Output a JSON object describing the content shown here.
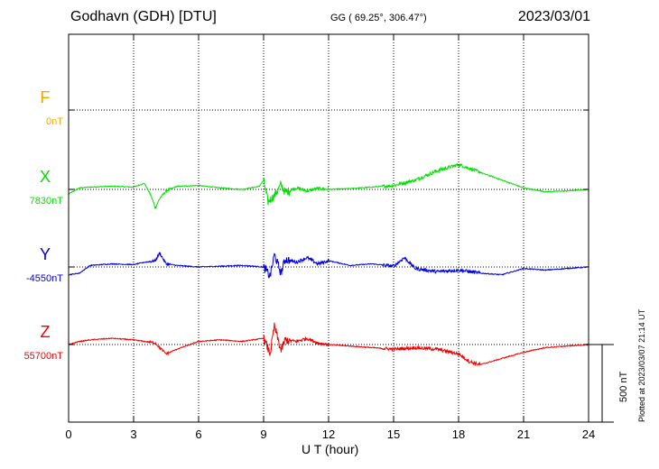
{
  "header": {
    "station": "Godhavn (GDH)  [DTU]",
    "coords": "GG ( 69.25°, 306.47°)",
    "date": "2023/03/01"
  },
  "footer": {
    "plotted": "Plotted at 2023/03/07 21:14 UT"
  },
  "chart_data": {
    "type": "line",
    "title": "",
    "xlabel": "U T (hour)",
    "ylabel": "",
    "xlim": [
      0,
      24
    ],
    "x_ticks": [
      "0",
      "3",
      "6",
      "9",
      "12",
      "15",
      "18",
      "21",
      "24"
    ],
    "scale_bar": "500 nT",
    "grid": "dotted vertical every 3 h, dotted baseline per component",
    "series": [
      {
        "name": "F",
        "baseline": "0nT",
        "color": "#f0a800",
        "x": [],
        "y": []
      },
      {
        "name": "X",
        "baseline": "7830nT",
        "color": "#00e000",
        "x": [
          0,
          0.5,
          1,
          2,
          3,
          3.5,
          3.8,
          4.0,
          4.2,
          4.5,
          5,
          6,
          7,
          8,
          8.8,
          9.0,
          9.2,
          9.5,
          9.8,
          10,
          10.5,
          11,
          11.5,
          12,
          13,
          14,
          15,
          16,
          17,
          18,
          19,
          20,
          21,
          22,
          23,
          24
        ],
        "y": [
          -30,
          10,
          15,
          20,
          15,
          40,
          -40,
          -120,
          -60,
          -10,
          20,
          25,
          10,
          0,
          20,
          60,
          -80,
          -40,
          30,
          -20,
          10,
          -10,
          5,
          0,
          5,
          15,
          25,
          60,
          120,
          160,
          110,
          60,
          10,
          -15,
          -10,
          0
        ]
      },
      {
        "name": "Y",
        "baseline": "-4550nT",
        "color": "#0000dd",
        "x": [
          0,
          0.5,
          1,
          2,
          3,
          3.5,
          4,
          4.2,
          4.5,
          5,
          6,
          7,
          8,
          9.0,
          9.3,
          9.5,
          9.8,
          10,
          10.5,
          11,
          11.5,
          12,
          13,
          14,
          15,
          15.5,
          16,
          17,
          18,
          19,
          20,
          21,
          22,
          23,
          24
        ],
        "y": [
          -50,
          -40,
          10,
          20,
          15,
          30,
          40,
          90,
          20,
          10,
          0,
          5,
          10,
          0,
          -60,
          80,
          -40,
          50,
          30,
          60,
          20,
          40,
          10,
          20,
          5,
          60,
          -10,
          -30,
          -20,
          -40,
          -50,
          -10,
          -20,
          -10,
          0
        ]
      },
      {
        "name": "Z",
        "baseline": "55700nT",
        "color": "#ee0000",
        "x": [
          0,
          0.5,
          1,
          2,
          3,
          3.5,
          4,
          4.2,
          4.5,
          5,
          6,
          7,
          8,
          9.0,
          9.3,
          9.5,
          9.8,
          10,
          10.5,
          11,
          11.5,
          12,
          13,
          14,
          15,
          16,
          17,
          18,
          18.5,
          19,
          20,
          21,
          22,
          23,
          24
        ],
        "y": [
          0,
          20,
          30,
          40,
          30,
          20,
          10,
          -20,
          -60,
          -30,
          20,
          30,
          20,
          40,
          -60,
          120,
          -40,
          30,
          20,
          40,
          10,
          0,
          -10,
          -20,
          -30,
          -20,
          -30,
          -60,
          -110,
          -130,
          -90,
          -50,
          -20,
          -10,
          0
        ]
      }
    ]
  }
}
